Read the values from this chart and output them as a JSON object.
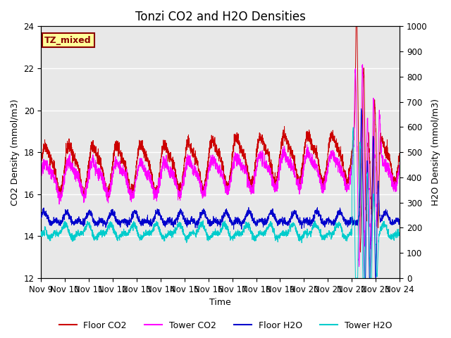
{
  "title": "Tonzi CO2 and H2O Densities",
  "xlabel": "Time",
  "ylabel_left": "CO2 Density (mmol/m3)",
  "ylabel_right": "H2O Density (mmol/m3)",
  "ylim_left": [
    12,
    24
  ],
  "ylim_right": [
    0,
    1000
  ],
  "xlim": [
    0,
    15
  ],
  "xtick_labels": [
    "Nov 9",
    "Nov 10",
    "Nov 11",
    "Nov 12",
    "Nov 13",
    "Nov 14",
    "Nov 15",
    "Nov 16",
    "Nov 17",
    "Nov 18",
    "Nov 19",
    "Nov 20",
    "Nov 21",
    "Nov 22",
    "Nov 23",
    "Nov 24"
  ],
  "xtick_positions": [
    0,
    1,
    2,
    3,
    4,
    5,
    6,
    7,
    8,
    9,
    10,
    11,
    12,
    13,
    14,
    15
  ],
  "annotation_text": "TZ_mixed",
  "annotation_color": "#8B0000",
  "annotation_bg": "#FFFF99",
  "colors": {
    "floor_co2": "#CC0000",
    "tower_co2": "#FF00FF",
    "floor_h2o": "#0000CC",
    "tower_h2o": "#00CCCC"
  },
  "legend_labels": [
    "Floor CO2",
    "Tower CO2",
    "Floor H2O",
    "Tower H2O"
  ],
  "background_color": "#E8E8E8",
  "title_fontsize": 12,
  "axis_fontsize": 9,
  "tick_fontsize": 8.5,
  "figsize": [
    6.4,
    4.8
  ],
  "dpi": 100
}
